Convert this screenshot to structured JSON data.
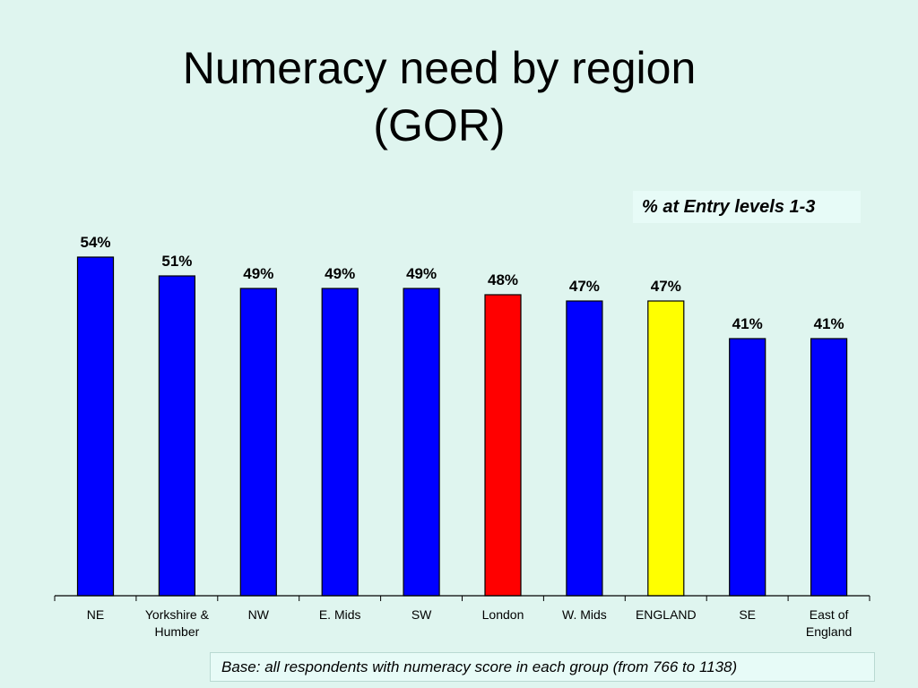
{
  "slide": {
    "title_line1": "Numeracy need by region",
    "title_line2": "(GOR)",
    "legend": "% at Entry levels 1-3",
    "base_note": "Base: all respondents with numeracy score in each group (from 766 to 1138)"
  },
  "chart_data": {
    "type": "bar",
    "title": "Numeracy need by region (GOR)",
    "categories": [
      [
        "NE"
      ],
      [
        "Yorkshire &",
        "Humber"
      ],
      [
        "NW"
      ],
      [
        "E. Mids"
      ],
      [
        "SW"
      ],
      [
        "London"
      ],
      [
        "W. Mids"
      ],
      [
        "ENGLAND"
      ],
      [
        "SE"
      ],
      [
        "East of",
        "England"
      ]
    ],
    "values": [
      54,
      51,
      49,
      49,
      49,
      48,
      47,
      47,
      41,
      41
    ],
    "value_labels": [
      "54%",
      "51%",
      "49%",
      "49%",
      "49%",
      "48%",
      "47%",
      "47%",
      "41%",
      "41%"
    ],
    "bar_colors": [
      "#0000ff",
      "#0000ff",
      "#0000ff",
      "#0000ff",
      "#0000ff",
      "#ff0000",
      "#0000ff",
      "#ffff00",
      "#0000ff",
      "#0000ff"
    ],
    "ylim": [
      0,
      100
    ],
    "grid": false,
    "legend_position": "top-right",
    "xlabel": "",
    "ylabel": ""
  }
}
